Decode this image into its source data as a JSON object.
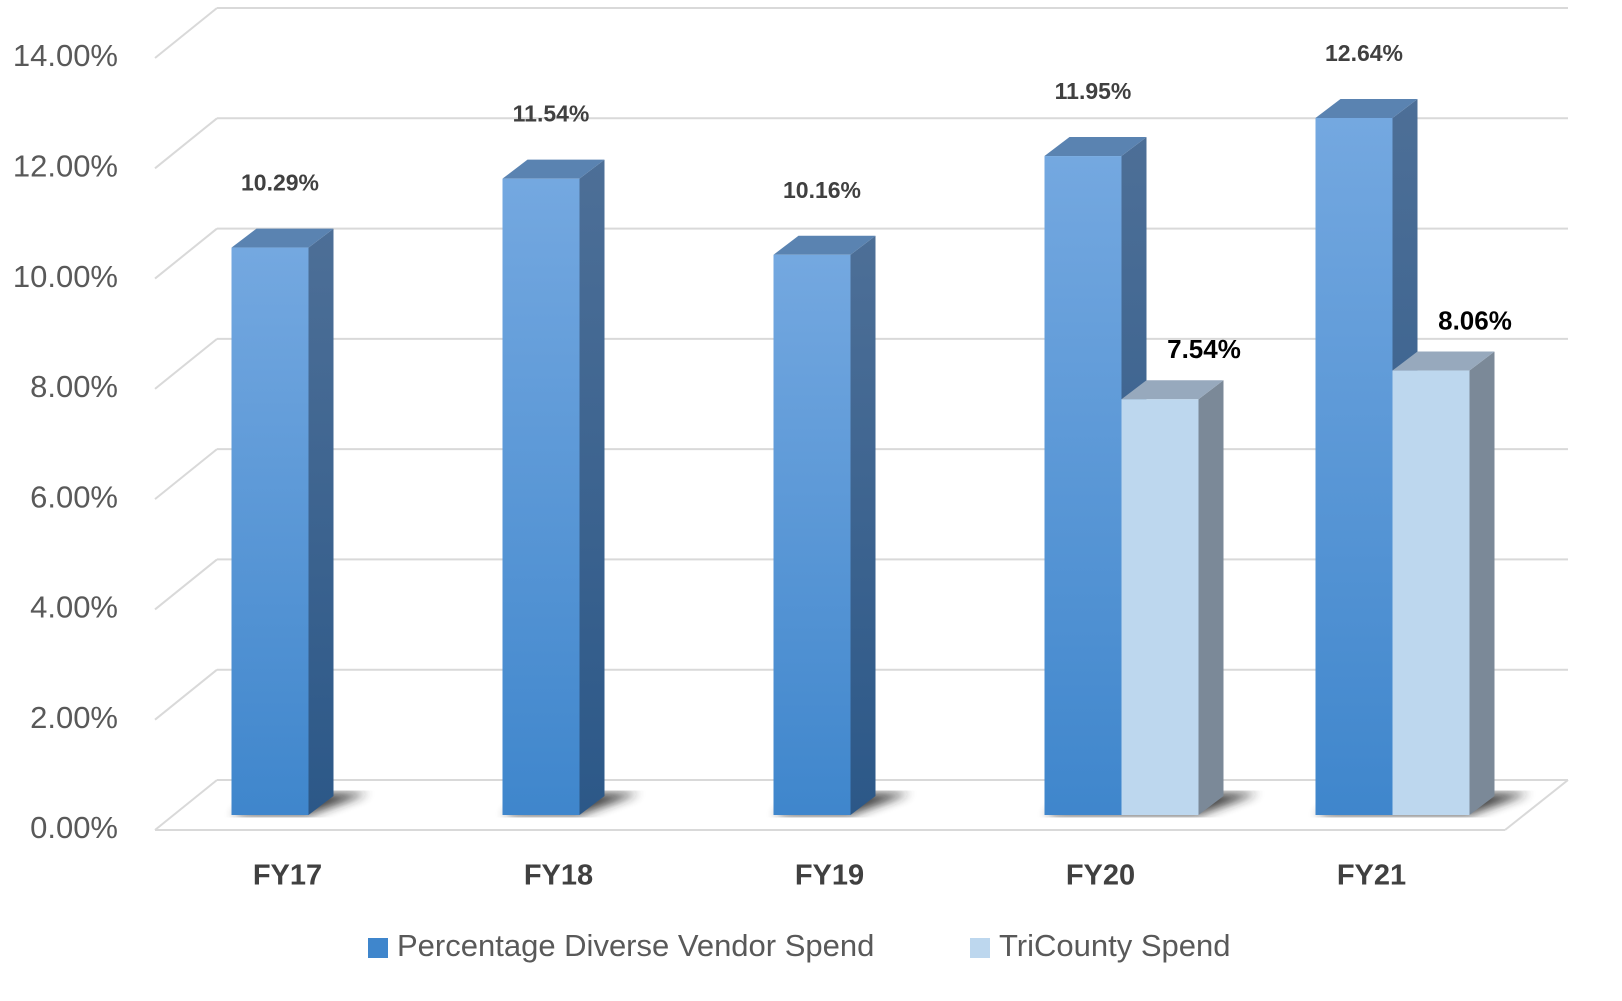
{
  "chart_data": {
    "type": "bar3d",
    "categories": [
      "FY17",
      "FY18",
      "FY19",
      "FY20",
      "FY21"
    ],
    "series": [
      {
        "name": "Percentage Diverse Vendor Spend",
        "color": "#5b9bd5",
        "values": [
          10.29,
          11.54,
          10.16,
          11.95,
          12.64
        ],
        "value_labels": [
          "10.29%",
          "11.54%",
          "10.16%",
          "11.95%",
          "12.64%"
        ]
      },
      {
        "name": "TriCounty Spend",
        "color": "#bdd7ee",
        "values": [
          null,
          null,
          null,
          7.54,
          8.06
        ],
        "value_labels": [
          null,
          null,
          null,
          "7.54%",
          "8.06%"
        ]
      }
    ],
    "ylim": [
      0,
      14
    ],
    "yticks": [
      {
        "value": 0,
        "label": "0.00%"
      },
      {
        "value": 2,
        "label": "2.00%"
      },
      {
        "value": 4,
        "label": "4.00%"
      },
      {
        "value": 6,
        "label": "6.00%"
      },
      {
        "value": 8,
        "label": "8.00%"
      },
      {
        "value": 10,
        "label": "10.00%"
      },
      {
        "value": 12,
        "label": "12.00%"
      },
      {
        "value": 14,
        "label": "14.00%"
      }
    ],
    "grid": true,
    "legend": "bottom"
  }
}
